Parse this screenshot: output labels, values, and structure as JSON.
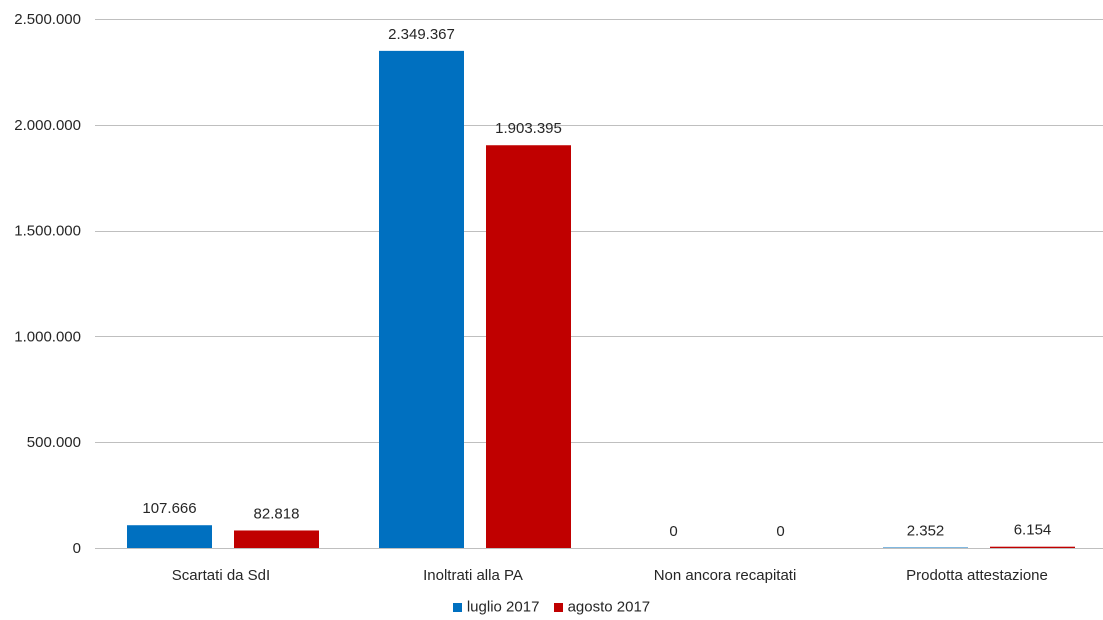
{
  "chart_data": {
    "type": "bar",
    "title": "",
    "xlabel": "",
    "ylabel": "",
    "categories": [
      "Scartati da SdI",
      "Inoltrati alla PA",
      "Non ancora recapitati",
      "Prodotta attestazione"
    ],
    "series": [
      {
        "name": "luglio 2017",
        "color": "#0070c0",
        "values": [
          107666,
          2349367,
          0,
          2352
        ],
        "labels": [
          "107.666",
          "2.349.367",
          "0",
          "2.352"
        ]
      },
      {
        "name": "agosto 2017",
        "color": "#c00000",
        "values": [
          82818,
          1903395,
          0,
          6154
        ],
        "labels": [
          "82.818",
          "1.903.395",
          "0",
          "6.154"
        ]
      }
    ],
    "ylim": [
      0,
      2500000
    ],
    "yticks": [
      0,
      500000,
      1000000,
      1500000,
      2000000,
      2500000
    ],
    "ytick_labels": [
      "0",
      "500.000",
      "1.000.000",
      "1.500.000",
      "2.000.000",
      "2.500.000"
    ],
    "grid": true,
    "legend_position": "bottom"
  }
}
